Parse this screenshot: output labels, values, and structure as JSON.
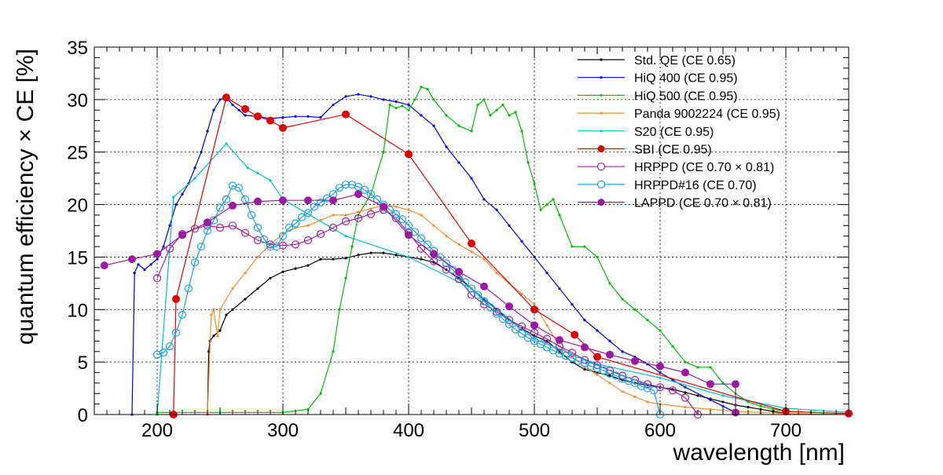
{
  "chart_data": {
    "type": "line",
    "title": "",
    "xlabel": "wavelength [nm]",
    "ylabel": "quantum efficiency  × CE [%]",
    "xlim": [
      150,
      750
    ],
    "ylim": [
      0,
      35
    ],
    "xticks": [
      200,
      300,
      400,
      500,
      600,
      700
    ],
    "yticks": [
      0,
      5,
      10,
      15,
      20,
      25,
      30,
      35
    ],
    "grid": true,
    "legend_position": "top-right",
    "series": [
      {
        "name": "Std. QE (CE 0.65)",
        "color": "#000000",
        "marker": "dot",
        "x": [
          240,
          241,
          242,
          245,
          250,
          255,
          260,
          270,
          280,
          290,
          300,
          310,
          320,
          330,
          340,
          350,
          360,
          370,
          380,
          390,
          400,
          410,
          420,
          430,
          440,
          450,
          460,
          470,
          480,
          490,
          500,
          510,
          520,
          530,
          540,
          550,
          560,
          570,
          580,
          590,
          600,
          610,
          620,
          630,
          640,
          650,
          660,
          670,
          680,
          690,
          700
        ],
        "y": [
          0,
          6,
          7,
          7.5,
          8,
          9.5,
          10,
          11,
          12,
          13,
          13.6,
          13.9,
          14.2,
          14.8,
          14.8,
          14.9,
          15.2,
          15.4,
          15.4,
          15.2,
          15,
          14.8,
          14.5,
          13.8,
          13,
          12,
          11,
          10,
          9,
          8.2,
          7.5,
          7,
          6,
          5,
          4.3,
          4,
          3.7,
          3.3,
          3,
          2.8,
          2.6,
          2.4,
          2.1,
          1.8,
          1.5,
          1.2,
          0.9,
          0.7,
          0.5,
          0.3,
          0.1
        ]
      },
      {
        "name": "HiQ 400 (CE 0.95)",
        "color": "#0000cc",
        "marker": "dot",
        "x": [
          180,
          182,
          185,
          190,
          195,
          200,
          205,
          210,
          215,
          220,
          225,
          230,
          235,
          240,
          245,
          250,
          255,
          260,
          265,
          270,
          280,
          290,
          300,
          310,
          320,
          330,
          340,
          350,
          360,
          370,
          380,
          390,
          400,
          410,
          420,
          430,
          440,
          450,
          460,
          470,
          480,
          490,
          500,
          510,
          520,
          530,
          540,
          550,
          560,
          570,
          580,
          590,
          600,
          610,
          620,
          640,
          650,
          660
        ],
        "y": [
          0,
          13.5,
          14.3,
          13.8,
          14.3,
          14.8,
          16,
          18,
          20,
          21,
          22,
          23.5,
          25,
          27,
          29,
          30,
          30.2,
          29.5,
          29,
          28.5,
          28.4,
          28.2,
          28.3,
          28.4,
          28.4,
          28.3,
          29.5,
          30.3,
          30.5,
          30.3,
          30,
          29.8,
          29.5,
          28.5,
          27.5,
          25.5,
          24,
          22.5,
          20.5,
          19.5,
          18,
          16.5,
          15,
          13.5,
          12,
          10.5,
          9,
          8,
          7,
          6,
          5.5,
          4.8,
          4,
          3.3,
          2.6,
          1.4,
          0.8,
          0.2
        ]
      },
      {
        "name": "HiQ 500 (CE 0.95)",
        "color": "#00bb00",
        "marker": "dot",
        "x": [
          200,
          250,
          300,
          320,
          330,
          340,
          345,
          350,
          355,
          360,
          370,
          380,
          385,
          390,
          395,
          400,
          405,
          410,
          415,
          420,
          430,
          440,
          450,
          455,
          460,
          465,
          470,
          475,
          480,
          485,
          490,
          495,
          500,
          505,
          510,
          515,
          520,
          530,
          540,
          550,
          560,
          570,
          580,
          590,
          600,
          610,
          620,
          630,
          640,
          650,
          660,
          670,
          680,
          690,
          700,
          720,
          750
        ],
        "y": [
          0.2,
          0.2,
          0.2,
          0.5,
          2,
          6,
          10,
          13,
          16,
          19,
          21,
          25,
          29.5,
          29.2,
          29.4,
          29,
          30,
          31.2,
          31,
          30,
          28.5,
          27.5,
          27,
          29.5,
          30,
          28.5,
          29,
          29.5,
          28.5,
          28.8,
          27,
          24,
          22,
          19.5,
          20,
          20.5,
          19,
          16,
          16,
          15,
          12.5,
          11,
          10,
          9,
          8,
          6.5,
          5,
          4.5,
          4.5,
          3,
          2,
          1.2,
          0.8,
          0.5,
          0.3,
          0.2,
          0.1
        ]
      },
      {
        "name": "Panda 9002224 (CE 0.95)",
        "color": "#f09030",
        "marker": "dot",
        "x": [
          240,
          243,
          245,
          248,
          250,
          260,
          270,
          280,
          290,
          300,
          310,
          320,
          330,
          340,
          350,
          360,
          370,
          380,
          390,
          400,
          410,
          420,
          430,
          440,
          450,
          460,
          470,
          480,
          490,
          500,
          510,
          520,
          530,
          540,
          550,
          560,
          570,
          580,
          590,
          600,
          620,
          640,
          660,
          680,
          700,
          750
        ],
        "y": [
          0,
          9.5,
          10,
          7.5,
          10,
          12,
          13.5,
          15,
          16.2,
          17.2,
          17.8,
          18,
          18.5,
          19,
          19,
          19.3,
          19.6,
          20,
          19.8,
          19.5,
          19,
          18,
          17,
          16.2,
          15.5,
          14.8,
          13.5,
          12.5,
          11.5,
          10.5,
          8.5,
          6.5,
          5.5,
          4.5,
          3.8,
          3,
          2.2,
          1.7,
          1.2,
          1,
          0.7,
          0.5,
          0.3,
          0.2,
          0.1,
          0
        ]
      },
      {
        "name": "S20 (CE 0.95)",
        "color": "#00c0c8",
        "marker": "dot",
        "x": [
          200,
          213,
          230,
          255,
          272,
          280,
          290,
          300,
          350,
          400,
          450,
          500,
          550,
          600,
          650,
          700,
          750
        ],
        "y": [
          0,
          20.7,
          22.5,
          25.8,
          23.5,
          23,
          22.3,
          20.5,
          17,
          15,
          12,
          7.2,
          4.8,
          3.5,
          1.8,
          0.6,
          0.2
        ]
      },
      {
        "name": "SBI (CE 0.95)",
        "color": "#dd0000",
        "marker": "filled-circle",
        "x": [
          213,
          215,
          255,
          270,
          280,
          290,
          300,
          350,
          400,
          450,
          500,
          532,
          550,
          700,
          750
        ],
        "y": [
          0,
          11,
          30.2,
          29.1,
          28.4,
          28,
          27.3,
          28.6,
          24.8,
          16.3,
          10,
          7.6,
          5.5,
          0.3,
          0.1
        ]
      },
      {
        "name": "HRPPD (CE 0.70  × 0.81)",
        "color": "#a020a0",
        "marker": "open-circle",
        "x": [
          200,
          210,
          220,
          230,
          240,
          250,
          260,
          270,
          280,
          290,
          300,
          310,
          320,
          330,
          340,
          350,
          360,
          370,
          380,
          390,
          400,
          410,
          420,
          430,
          440,
          450,
          460,
          470,
          480,
          490,
          500,
          510,
          520,
          530,
          540,
          550,
          560,
          570,
          580,
          590,
          600,
          610,
          620,
          630
        ],
        "y": [
          13,
          15.8,
          17.2,
          17.7,
          18,
          17.8,
          18,
          17.3,
          16.6,
          16.2,
          16.1,
          16.2,
          16.6,
          17.2,
          17.8,
          18.4,
          18.7,
          19.1,
          19.5,
          18.7,
          17.3,
          15.8,
          14.6,
          13.8,
          12.9,
          11.4,
          10.5,
          9.8,
          9,
          8.4,
          7.8,
          7.2,
          6.5,
          5.9,
          5.2,
          4.7,
          4.2,
          3.7,
          3.3,
          2.9,
          2.6,
          2.3,
          1.6,
          0
        ]
      },
      {
        "name": "HRPPD#16 (CE 0.70)",
        "color": "#1aa0e8",
        "marker": "open-circle",
        "x": [
          200,
          205,
          210,
          215,
          220,
          225,
          230,
          235,
          240,
          245,
          250,
          255,
          260,
          265,
          270,
          275,
          280,
          285,
          290,
          295,
          300,
          305,
          310,
          315,
          320,
          325,
          330,
          335,
          340,
          345,
          350,
          355,
          360,
          365,
          370,
          375,
          380,
          385,
          390,
          395,
          400,
          405,
          410,
          415,
          420,
          425,
          430,
          435,
          440,
          445,
          450,
          455,
          460,
          465,
          470,
          475,
          480,
          485,
          490,
          495,
          500,
          505,
          510,
          515,
          520,
          525,
          530,
          535,
          540,
          545,
          550,
          555,
          560,
          565,
          570,
          575,
          580,
          585,
          590,
          595,
          600
        ],
        "y": [
          5.7,
          5.9,
          6.5,
          7.8,
          9.5,
          12,
          14.5,
          16,
          17.5,
          18.5,
          19.7,
          20.5,
          21.8,
          21.6,
          20.5,
          19,
          17.8,
          16.7,
          16,
          16,
          17,
          17.8,
          18.2,
          18.8,
          19.2,
          19.8,
          20.2,
          20.6,
          21,
          21.6,
          21.9,
          21.9,
          21.7,
          21.4,
          21,
          20.5,
          20,
          19.5,
          19.1,
          18.6,
          18,
          17.4,
          16.8,
          16.2,
          15.6,
          15,
          14.4,
          13.8,
          13.2,
          12.6,
          12,
          11.4,
          10.8,
          10.2,
          9.6,
          9.1,
          8.6,
          8.1,
          7.7,
          7.3,
          7,
          6.7,
          6.4,
          6.1,
          5.8,
          5.6,
          5.4,
          5.1,
          4.9,
          4.6,
          4.4,
          4.2,
          3.9,
          3.7,
          3.4,
          3.2,
          3,
          2.7,
          2.5,
          2.3,
          0
        ]
      },
      {
        "name": "LAPPD (CE 0.70  × 0.81)",
        "color": "#9b1aa0",
        "marker": "filled-circle",
        "x": [
          158,
          180,
          200,
          220,
          240,
          260,
          280,
          300,
          320,
          340,
          360,
          380,
          400,
          420,
          440,
          460,
          480,
          500,
          520,
          540,
          560,
          580,
          600,
          620,
          640,
          660,
          660
        ],
        "y": [
          14.2,
          14.8,
          15.3,
          17.1,
          18.3,
          19.9,
          20.3,
          20.4,
          20.4,
          20.4,
          21,
          19.8,
          17.1,
          15.3,
          13.6,
          12.2,
          10.3,
          8.5,
          7.1,
          6.4,
          5.7,
          5.1,
          4.6,
          4,
          2.9,
          2.9,
          0.2
        ]
      }
    ]
  }
}
